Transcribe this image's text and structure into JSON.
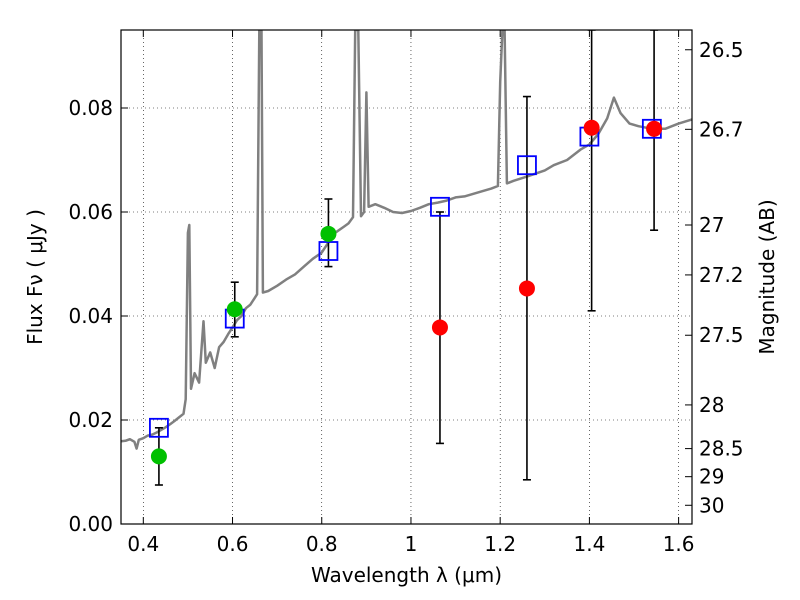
{
  "chart_data": {
    "type": "scatter",
    "xlabel": "Wavelength  λ (μm)",
    "ylabel": "Flux  Fν ( μJy )",
    "y2label": "Magnitude (AB)",
    "xlim": [
      0.35,
      1.63
    ],
    "ylim": [
      0.0,
      0.095
    ],
    "grid": true,
    "x_ticks": [
      0.4,
      0.6,
      0.8,
      1.0,
      1.2,
      1.4,
      1.6
    ],
    "x_tick_labels": [
      "0.4",
      "0.6",
      "0.8",
      "1",
      "1.2",
      "1.4",
      "1.6"
    ],
    "y_ticks": [
      0.0,
      0.02,
      0.04,
      0.06,
      0.08
    ],
    "y_tick_labels": [
      "0.00",
      "0.02",
      "0.04",
      "0.06",
      "0.08"
    ],
    "right_ticks": [
      {
        "label": "26.5",
        "flux": 0.0912
      },
      {
        "label": "26.7",
        "flux": 0.0759
      },
      {
        "label": "27",
        "flux": 0.0575
      },
      {
        "label": "27.2",
        "flux": 0.0479
      },
      {
        "label": "27.5",
        "flux": 0.0363
      },
      {
        "label": "28",
        "flux": 0.0229
      },
      {
        "label": "28.5",
        "flux": 0.0145
      },
      {
        "label": "29",
        "flux": 0.0091
      },
      {
        "label": "30",
        "flux": 0.0036
      }
    ],
    "sed_model": {
      "color": "#808080",
      "points": [
        [
          0.35,
          0.0159
        ],
        [
          0.36,
          0.016
        ],
        [
          0.37,
          0.0163
        ],
        [
          0.38,
          0.0158
        ],
        [
          0.385,
          0.0145
        ],
        [
          0.39,
          0.0162
        ],
        [
          0.4,
          0.0165
        ],
        [
          0.41,
          0.017
        ],
        [
          0.42,
          0.0172
        ],
        [
          0.43,
          0.0176
        ],
        [
          0.44,
          0.0181
        ],
        [
          0.45,
          0.0186
        ],
        [
          0.46,
          0.0192
        ],
        [
          0.47,
          0.0198
        ],
        [
          0.48,
          0.0205
        ],
        [
          0.49,
          0.0212
        ],
        [
          0.495,
          0.024
        ],
        [
          0.5,
          0.056
        ],
        [
          0.503,
          0.0575
        ],
        [
          0.507,
          0.026
        ],
        [
          0.515,
          0.029
        ],
        [
          0.525,
          0.0272
        ],
        [
          0.535,
          0.039
        ],
        [
          0.54,
          0.031
        ],
        [
          0.55,
          0.033
        ],
        [
          0.56,
          0.03
        ],
        [
          0.57,
          0.034
        ],
        [
          0.58,
          0.035
        ],
        [
          0.59,
          0.0365
        ],
        [
          0.6,
          0.0378
        ],
        [
          0.61,
          0.0392
        ],
        [
          0.62,
          0.04
        ],
        [
          0.63,
          0.0415
        ],
        [
          0.64,
          0.0422
        ],
        [
          0.65,
          0.0435
        ],
        [
          0.655,
          0.0442
        ],
        [
          0.66,
          0.095
        ],
        [
          0.665,
          0.095
        ],
        [
          0.668,
          0.0445
        ],
        [
          0.68,
          0.0448
        ],
        [
          0.7,
          0.0458
        ],
        [
          0.72,
          0.047
        ],
        [
          0.74,
          0.048
        ],
        [
          0.76,
          0.0495
        ],
        [
          0.78,
          0.051
        ],
        [
          0.8,
          0.0522
        ],
        [
          0.81,
          0.0535
        ],
        [
          0.82,
          0.0548
        ],
        [
          0.83,
          0.056
        ],
        [
          0.85,
          0.0572
        ],
        [
          0.86,
          0.0578
        ],
        [
          0.87,
          0.059
        ],
        [
          0.875,
          0.095
        ],
        [
          0.882,
          0.095
        ],
        [
          0.888,
          0.0592
        ],
        [
          0.895,
          0.06
        ],
        [
          0.9,
          0.083
        ],
        [
          0.905,
          0.061
        ],
        [
          0.92,
          0.0615
        ],
        [
          0.94,
          0.0608
        ],
        [
          0.96,
          0.06
        ],
        [
          0.98,
          0.0598
        ],
        [
          1.0,
          0.0602
        ],
        [
          1.02,
          0.0608
        ],
        [
          1.04,
          0.0615
        ],
        [
          1.06,
          0.0618
        ],
        [
          1.08,
          0.0622
        ],
        [
          1.1,
          0.0628
        ],
        [
          1.12,
          0.063
        ],
        [
          1.14,
          0.0635
        ],
        [
          1.16,
          0.064
        ],
        [
          1.18,
          0.0645
        ],
        [
          1.195,
          0.065
        ],
        [
          1.2,
          0.085
        ],
        [
          1.205,
          0.095
        ],
        [
          1.21,
          0.095
        ],
        [
          1.215,
          0.0655
        ],
        [
          1.23,
          0.066
        ],
        [
          1.26,
          0.0668
        ],
        [
          1.3,
          0.068
        ],
        [
          1.32,
          0.069
        ],
        [
          1.35,
          0.07
        ],
        [
          1.38,
          0.072
        ],
        [
          1.4,
          0.073
        ],
        [
          1.42,
          0.075
        ],
        [
          1.44,
          0.078
        ],
        [
          1.455,
          0.082
        ],
        [
          1.47,
          0.079
        ],
        [
          1.49,
          0.077
        ],
        [
          1.51,
          0.0765
        ],
        [
          1.54,
          0.076
        ],
        [
          1.57,
          0.076
        ],
        [
          1.6,
          0.077
        ],
        [
          1.63,
          0.0778
        ]
      ]
    },
    "series": [
      {
        "marker": "square",
        "color": "#0000ff",
        "points": [
          {
            "x": 0.435,
            "y": 0.0185
          },
          {
            "x": 0.605,
            "y": 0.0395
          },
          {
            "x": 0.815,
            "y": 0.0525
          },
          {
            "x": 1.065,
            "y": 0.061
          },
          {
            "x": 1.26,
            "y": 0.069
          },
          {
            "x": 1.4,
            "y": 0.0745
          },
          {
            "x": 1.54,
            "y": 0.076
          }
        ]
      },
      {
        "marker": "circle",
        "color": "#00c000",
        "points": [
          {
            "x": 0.435,
            "y": 0.013,
            "err_lo": 0.0075,
            "err_hi": 0.0185
          },
          {
            "x": 0.605,
            "y": 0.0413,
            "err_lo": 0.036,
            "err_hi": 0.0465
          },
          {
            "x": 0.815,
            "y": 0.0558,
            "err_lo": 0.0495,
            "err_hi": 0.0625
          }
        ]
      },
      {
        "marker": "circle",
        "color": "#ff0000",
        "points": [
          {
            "x": 1.065,
            "y": 0.0378,
            "err_lo": 0.0155,
            "err_hi": 0.06
          },
          {
            "x": 1.26,
            "y": 0.0453,
            "err_lo": 0.0085,
            "err_hi": 0.0822
          },
          {
            "x": 1.405,
            "y": 0.0762,
            "err_lo": 0.041,
            "err_hi": 0.095
          },
          {
            "x": 1.545,
            "y": 0.076,
            "err_lo": 0.0565,
            "err_hi": 0.095
          }
        ]
      }
    ]
  }
}
